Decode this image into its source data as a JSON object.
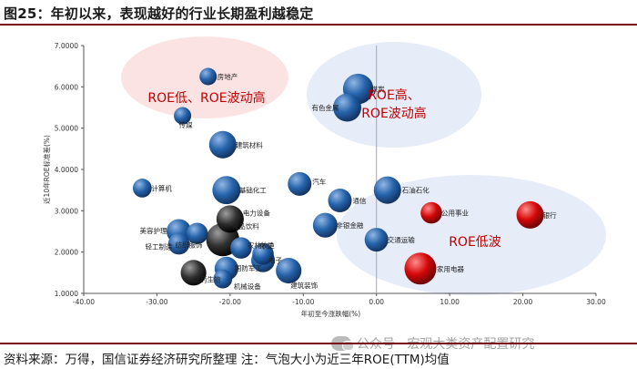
{
  "page": {
    "title": "图25：年初以来，表现越好的行业长期盈利越稳定",
    "source": "资料来源：万得，国信证券经济研究所整理    注：气泡大小为近三年ROE(TTM)均值",
    "watermark": "公众号 · 宏观大类资产配置研究"
  },
  "chart_data": {
    "type": "scatter",
    "title": "年初以来，表现越好的行业长期盈利越稳定",
    "xlabel": "年初至今涨跌幅(%)",
    "ylabel": "近10年ROE标准差(%)",
    "xlim": [
      -40,
      30
    ],
    "ylim": [
      1,
      7
    ],
    "xticks": [
      -40,
      -30,
      -20,
      -10,
      0,
      10,
      20,
      30
    ],
    "yticks": [
      1,
      2,
      3,
      4,
      5,
      6,
      7
    ],
    "xtick_labels": [
      "-40.00",
      "-30.00",
      "-20.00",
      "-10.00",
      "0.00",
      "10.00",
      "20.00",
      "30.00"
    ],
    "ytick_labels": [
      "1.0000",
      "2.0000",
      "3.0000",
      "4.0000",
      "5.0000",
      "6.0000",
      "7.0000"
    ],
    "colors": {
      "blue": "#1f5fa8",
      "red": "#d40000",
      "black": "#262626",
      "zone_red": "#fbe3e3",
      "zone_blue": "#e6ecf8",
      "axis": "#555555",
      "anno": "#c00000"
    },
    "series": [
      {
        "name": "房地产",
        "x": -23.0,
        "y": 6.25,
        "size": 1.5,
        "color": "blue"
      },
      {
        "name": "煤炭",
        "x": -2.5,
        "y": 5.95,
        "size": 8.0,
        "color": "blue"
      },
      {
        "name": "有色金属",
        "x": -4.0,
        "y": 5.5,
        "size": 6.5,
        "color": "blue"
      },
      {
        "name": "传媒",
        "x": -26.5,
        "y": 5.3,
        "size": 1.5,
        "color": "blue"
      },
      {
        "name": "建筑材料",
        "x": -21.0,
        "y": 4.6,
        "size": 6.0,
        "color": "blue"
      },
      {
        "name": "计算机",
        "x": -32.0,
        "y": 3.55,
        "size": 2.0,
        "color": "blue"
      },
      {
        "name": "基础化工",
        "x": -20.5,
        "y": 3.5,
        "size": 6.5,
        "color": "blue"
      },
      {
        "name": "汽车",
        "x": -10.5,
        "y": 3.65,
        "size": 4.0,
        "color": "blue"
      },
      {
        "name": "石油石化",
        "x": 1.5,
        "y": 3.5,
        "size": 6.0,
        "color": "blue"
      },
      {
        "name": "通信",
        "x": -5.0,
        "y": 3.25,
        "size": 4.0,
        "color": "blue"
      },
      {
        "name": "公用事业",
        "x": 7.5,
        "y": 2.95,
        "size": 3.0,
        "color": "red"
      },
      {
        "name": "银行",
        "x": 21.0,
        "y": 2.9,
        "size": 6.0,
        "color": "red"
      },
      {
        "name": "电力设备",
        "x": -20.0,
        "y": 2.8,
        "size": 6.0,
        "color": "black"
      },
      {
        "name": "美容护理",
        "x": -27.0,
        "y": 2.5,
        "size": 4.5,
        "color": "blue"
      },
      {
        "name": "非银金融",
        "x": -7.0,
        "y": 2.65,
        "size": 4.5,
        "color": "blue"
      },
      {
        "name": "纺织服饰",
        "x": -24.5,
        "y": 2.45,
        "size": 3.0,
        "color": "blue"
      },
      {
        "name": "交通运输",
        "x": 0.0,
        "y": 2.3,
        "size": 4.0,
        "color": "blue"
      },
      {
        "name": "食品饮料",
        "x": -21.0,
        "y": 2.3,
        "size": 10.0,
        "color": "black"
      },
      {
        "name": "农林牧渔",
        "x": -18.5,
        "y": 2.1,
        "size": 3.0,
        "color": "blue"
      },
      {
        "name": "轻工制造",
        "x": -27.0,
        "y": 2.2,
        "size": 3.0,
        "color": "blue"
      },
      {
        "name": "环保",
        "x": -15.5,
        "y": 1.95,
        "size": 3.0,
        "color": "blue"
      },
      {
        "name": "电子",
        "x": -15.5,
        "y": 1.8,
        "size": 4.0,
        "color": "blue"
      },
      {
        "name": "国防军工",
        "x": -20.5,
        "y": 1.6,
        "size": 4.0,
        "color": "blue"
      },
      {
        "name": "建筑装饰",
        "x": -12.0,
        "y": 1.55,
        "size": 5.0,
        "color": "blue"
      },
      {
        "name": "家用电器",
        "x": 6.0,
        "y": 1.6,
        "size": 9.0,
        "color": "red"
      },
      {
        "name": "医药生物",
        "x": -25.0,
        "y": 1.5,
        "size": 5.0,
        "color": "black"
      },
      {
        "name": "机械设备",
        "x": -21.0,
        "y": 1.35,
        "size": 2.0,
        "color": "blue"
      }
    ],
    "annotations": [
      {
        "id": "low-roe-high-vol",
        "lines": [
          "ROE低、ROE波动高"
        ]
      },
      {
        "id": "high-roe-high-vol",
        "lines": [
          "ROE高、",
          "ROE波动高"
        ]
      },
      {
        "id": "low-roe-vol",
        "lines": [
          "ROE低波"
        ]
      }
    ]
  }
}
